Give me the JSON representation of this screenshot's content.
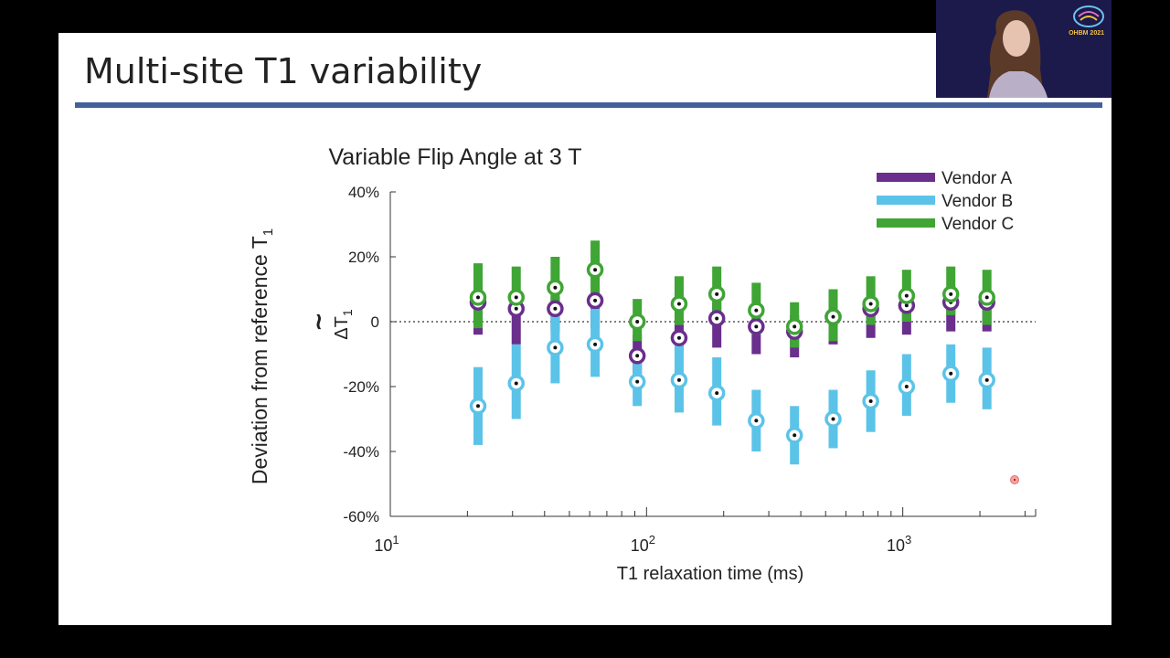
{
  "slide": {
    "title": "Multi-site T1 variability"
  },
  "webcam": {
    "event_label": "OHBM 2021"
  },
  "chart_data": {
    "type": "scatter",
    "title": "Variable Flip Angle at 3 T",
    "xlabel": "T1 relaxation time (ms)",
    "ylabel": "Deviation from reference T",
    "ylabel_sub": "1",
    "inner_ylabel": "ΔT",
    "inner_ylabel_sub": "1",
    "xscale": "log",
    "xlim": [
      10,
      3300
    ],
    "ylim": [
      -60,
      40
    ],
    "yticks": [
      -60,
      -40,
      -20,
      0,
      20,
      40
    ],
    "ytick_labels": [
      "-60%",
      "-40%",
      "-20%",
      "0",
      "20%",
      "40%"
    ],
    "xtick_labels": [
      {
        "value": 10,
        "base": "10",
        "exp": "1"
      },
      {
        "value": 100,
        "base": "10",
        "exp": "2"
      },
      {
        "value": 1000,
        "base": "10",
        "exp": "3"
      }
    ],
    "reference_line": 0,
    "x": [
      22,
      31,
      44,
      63,
      92,
      134,
      188,
      268,
      378,
      535,
      750,
      1035,
      1540,
      2130
    ],
    "series": [
      {
        "name": "Vendor A",
        "color": "#6a2e8c",
        "values": [
          6,
          4,
          4,
          6.5,
          -10.5,
          -5,
          1,
          -1.5,
          -3,
          1.5,
          4,
          5,
          6,
          6
        ],
        "low": [
          -4,
          -7,
          -3,
          -2,
          -16,
          -9,
          -8,
          -10,
          -11,
          -7,
          -5,
          -4,
          -3,
          -3
        ],
        "high": [
          8,
          7,
          8,
          9,
          -4,
          -1,
          6,
          3,
          2,
          4,
          6,
          7,
          8,
          8
        ]
      },
      {
        "name": "Vendor B",
        "color": "#5cc3e8",
        "values": [
          -26,
          -19,
          -8,
          -7,
          -18.5,
          -18,
          -22,
          -30.5,
          -35,
          -30,
          -24.5,
          -20,
          -16,
          -18
        ],
        "low": [
          -38,
          -30,
          -19,
          -17,
          -26,
          -28,
          -32,
          -40,
          -44,
          -39,
          -34,
          -29,
          -25,
          -27
        ],
        "high": [
          -14,
          -7,
          3,
          4,
          -11,
          -7,
          -11,
          -21,
          -26,
          -21,
          -15,
          -10,
          -7,
          -8
        ]
      },
      {
        "name": "Vendor C",
        "color": "#3fa535",
        "values": [
          7.5,
          7.5,
          10.5,
          16,
          0,
          5.5,
          8.5,
          3.5,
          -1.5,
          1.5,
          5.5,
          8,
          8.5,
          7.5
        ],
        "low": [
          -2,
          2,
          2,
          8,
          -6,
          -1,
          2,
          -4,
          -8,
          -6,
          -1,
          0,
          2,
          -1
        ],
        "high": [
          18,
          17,
          20,
          25,
          7,
          14,
          17,
          12,
          6,
          10,
          14,
          16,
          17,
          16
        ]
      }
    ],
    "legend_position": "top-right"
  }
}
